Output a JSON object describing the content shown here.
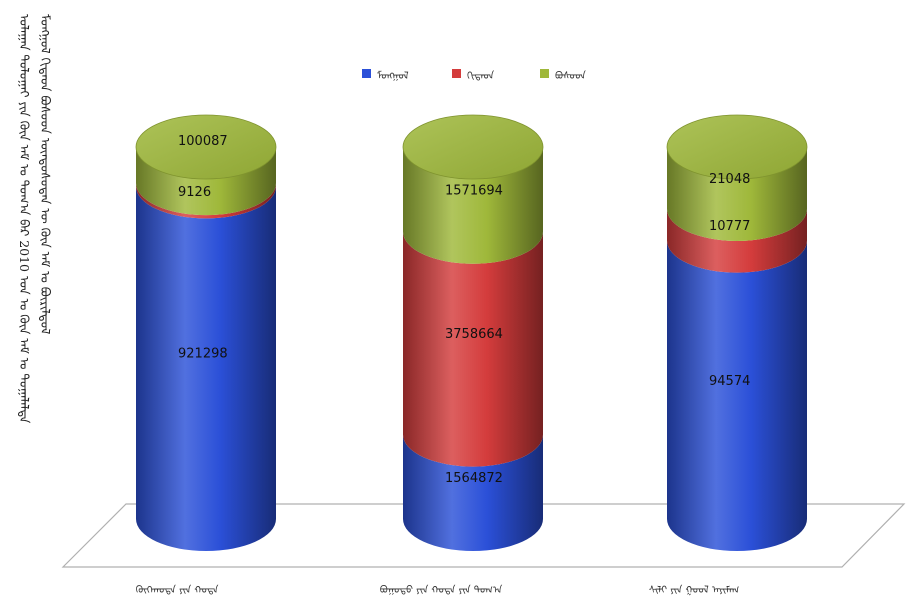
{
  "title": "ᠤᠯᠠᠭᠠᠨ ᠲᠣᠯᠣᠭᠠᠢ ᠶᠢᠨ ᠬᠦᠨ ᠠᠮ ᠤ ᠲᠣᠭ᠎ᠠ ᠪᠡᠷ 2010 ᠣᠨ ᠤ ᠬᠦᠨ ᠠᠮ ᠤ ᠲᠣᠭᠠᠯᠠᠯᠲᠠ",
  "title_line2": "ᠮᠣᠩᠭᠣᠯ ᠬᠢᠲᠠᠳ ᠪᠤᠰᠤᠳ ᠦᠨᠳᠦᠰᠦᠲᠡᠨ ᠦ ᠬᠦᠨ ᠠᠮ ᠤ ᠪᠦᠷᠢᠯᠳᠦᠯ",
  "chart_data": {
    "type": "bar",
    "stacked": true,
    "style": "3d-cylinder",
    "categories": [
      "ᠬᠥᠬᠡᠬᠣᠲᠠ ᠶᠢᠨ ᠬᠣᠲᠠ",
      "ᠪᠣᠭᠣᠲᠣ ᠶᠢᠨ ᠬᠣᠲᠠ ᠶᠢᠨ ᠲᠣᠭ᠎ᠠ",
      "ᠰᠢᠯᠢ ᠶᠢᠨ ᠭᠣᠣᠯ ᠠᠶᠢᠮᠠᠭ"
    ],
    "series": [
      {
        "name": "ᠮᠣᠩᠭᠣᠯ",
        "color": "#2b50d8",
        "values": [
          921298,
          1564872,
          94574
        ]
      },
      {
        "name": "ᠬᠢᠲᠠᠳ",
        "color": "#d43c3c",
        "values": [
          9126,
          3758664,
          10777
        ]
      },
      {
        "name": "ᠪᠤᠰᠤᠳ",
        "color": "#9fb83a",
        "values": [
          100087,
          1571694,
          21048
        ]
      }
    ],
    "legend_position": "top"
  }
}
